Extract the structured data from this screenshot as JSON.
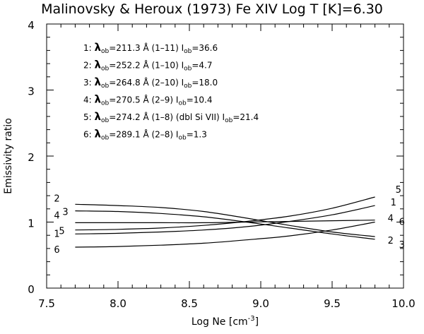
{
  "chart_data": {
    "type": "line",
    "title": "Malinovsky & Heroux (1973)  Fe XIV  Log T [K]=6.30",
    "xlabel": "Log Ne [cm",
    "xlabel_sup": "-3",
    "xlabel_end": "]",
    "ylabel": "Emissivity ratio",
    "xlim": [
      7.5,
      10.0
    ],
    "ylim": [
      0,
      4
    ],
    "xticks": [
      "7.5",
      "8.0",
      "8.5",
      "9.0",
      "9.5",
      "10.0"
    ],
    "yticks": [
      "0",
      "1",
      "2",
      "3",
      "4"
    ],
    "grid": false,
    "legend_placement": "top-left",
    "annotations": [
      {
        "num": "1: ",
        "lambda": "λ",
        "ob": "ob",
        "rest": "=211.3 Å (1–11)   I",
        "ob2": "ob",
        "end": "=36.6"
      },
      {
        "num": "2: ",
        "lambda": "λ",
        "ob": "ob",
        "rest": "=252.2 Å (1–10) I",
        "ob2": "ob",
        "end": "=4.7"
      },
      {
        "num": "3: ",
        "lambda": "λ",
        "ob": "ob",
        "rest": "=264.8 Å (2–10) I",
        "ob2": "ob",
        "end": "=18.0"
      },
      {
        "num": "4: ",
        "lambda": "λ",
        "ob": "ob",
        "rest": "=270.5 Å (2–9)   I",
        "ob2": "ob",
        "end": "=10.4"
      },
      {
        "num": "5: ",
        "lambda": "λ",
        "ob": "ob",
        "rest": "=274.2 Å (1–8) (dbl Si VII) I",
        "ob2": "ob",
        "end": "=21.4"
      },
      {
        "num": "6: ",
        "lambda": "λ",
        "ob": "ob",
        "rest": "=289.1 Å (2–8)   I",
        "ob2": "ob",
        "end": "=1.3"
      }
    ],
    "x": [
      7.7,
      8.0,
      8.3,
      8.6,
      8.9,
      9.2,
      9.5,
      9.8
    ],
    "series": [
      {
        "label": "1",
        "values": [
          0.82,
          0.83,
          0.85,
          0.88,
          0.93,
          1.01,
          1.11,
          1.25
        ]
      },
      {
        "label": "2",
        "values": [
          1.27,
          1.25,
          1.22,
          1.16,
          1.06,
          0.95,
          0.85,
          0.78
        ]
      },
      {
        "label": "3",
        "values": [
          1.17,
          1.16,
          1.13,
          1.08,
          1.0,
          0.91,
          0.82,
          0.74
        ]
      },
      {
        "label": "4",
        "values": [
          0.99,
          0.99,
          0.99,
          0.99,
          1.0,
          1.01,
          1.02,
          1.03
        ]
      },
      {
        "label": "5",
        "values": [
          0.88,
          0.89,
          0.91,
          0.95,
          1.01,
          1.09,
          1.21,
          1.38
        ]
      },
      {
        "label": "6",
        "values": [
          0.62,
          0.63,
          0.65,
          0.68,
          0.73,
          0.79,
          0.88,
          1.0
        ]
      }
    ]
  }
}
